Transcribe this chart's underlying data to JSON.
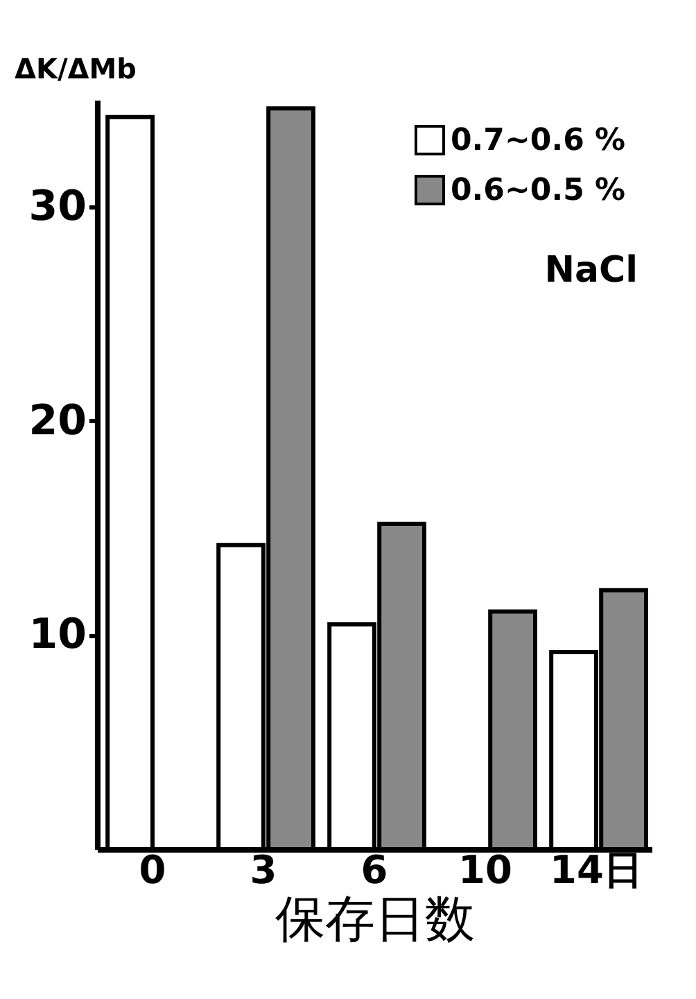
{
  "chart_data": {
    "type": "bar",
    "ylabel": "ΔK/ΔMb",
    "xlabel": "保存日数",
    "categories": [
      "0",
      "3",
      "6",
      "10",
      "14日"
    ],
    "series": [
      {
        "name": "0.7~0.6 %",
        "color": "#ffffff",
        "values": [
          34.2,
          14.2,
          10.5,
          null,
          9.2
        ]
      },
      {
        "name": "0.6~0.5 %",
        "color": "#888888",
        "values": [
          null,
          34.6,
          15.2,
          11.1,
          12.1
        ]
      }
    ],
    "ylim": [
      0,
      35
    ],
    "yticks": [
      10,
      20,
      30
    ],
    "grid": false,
    "legend": "top right",
    "annotations": [
      "NaCl"
    ]
  }
}
